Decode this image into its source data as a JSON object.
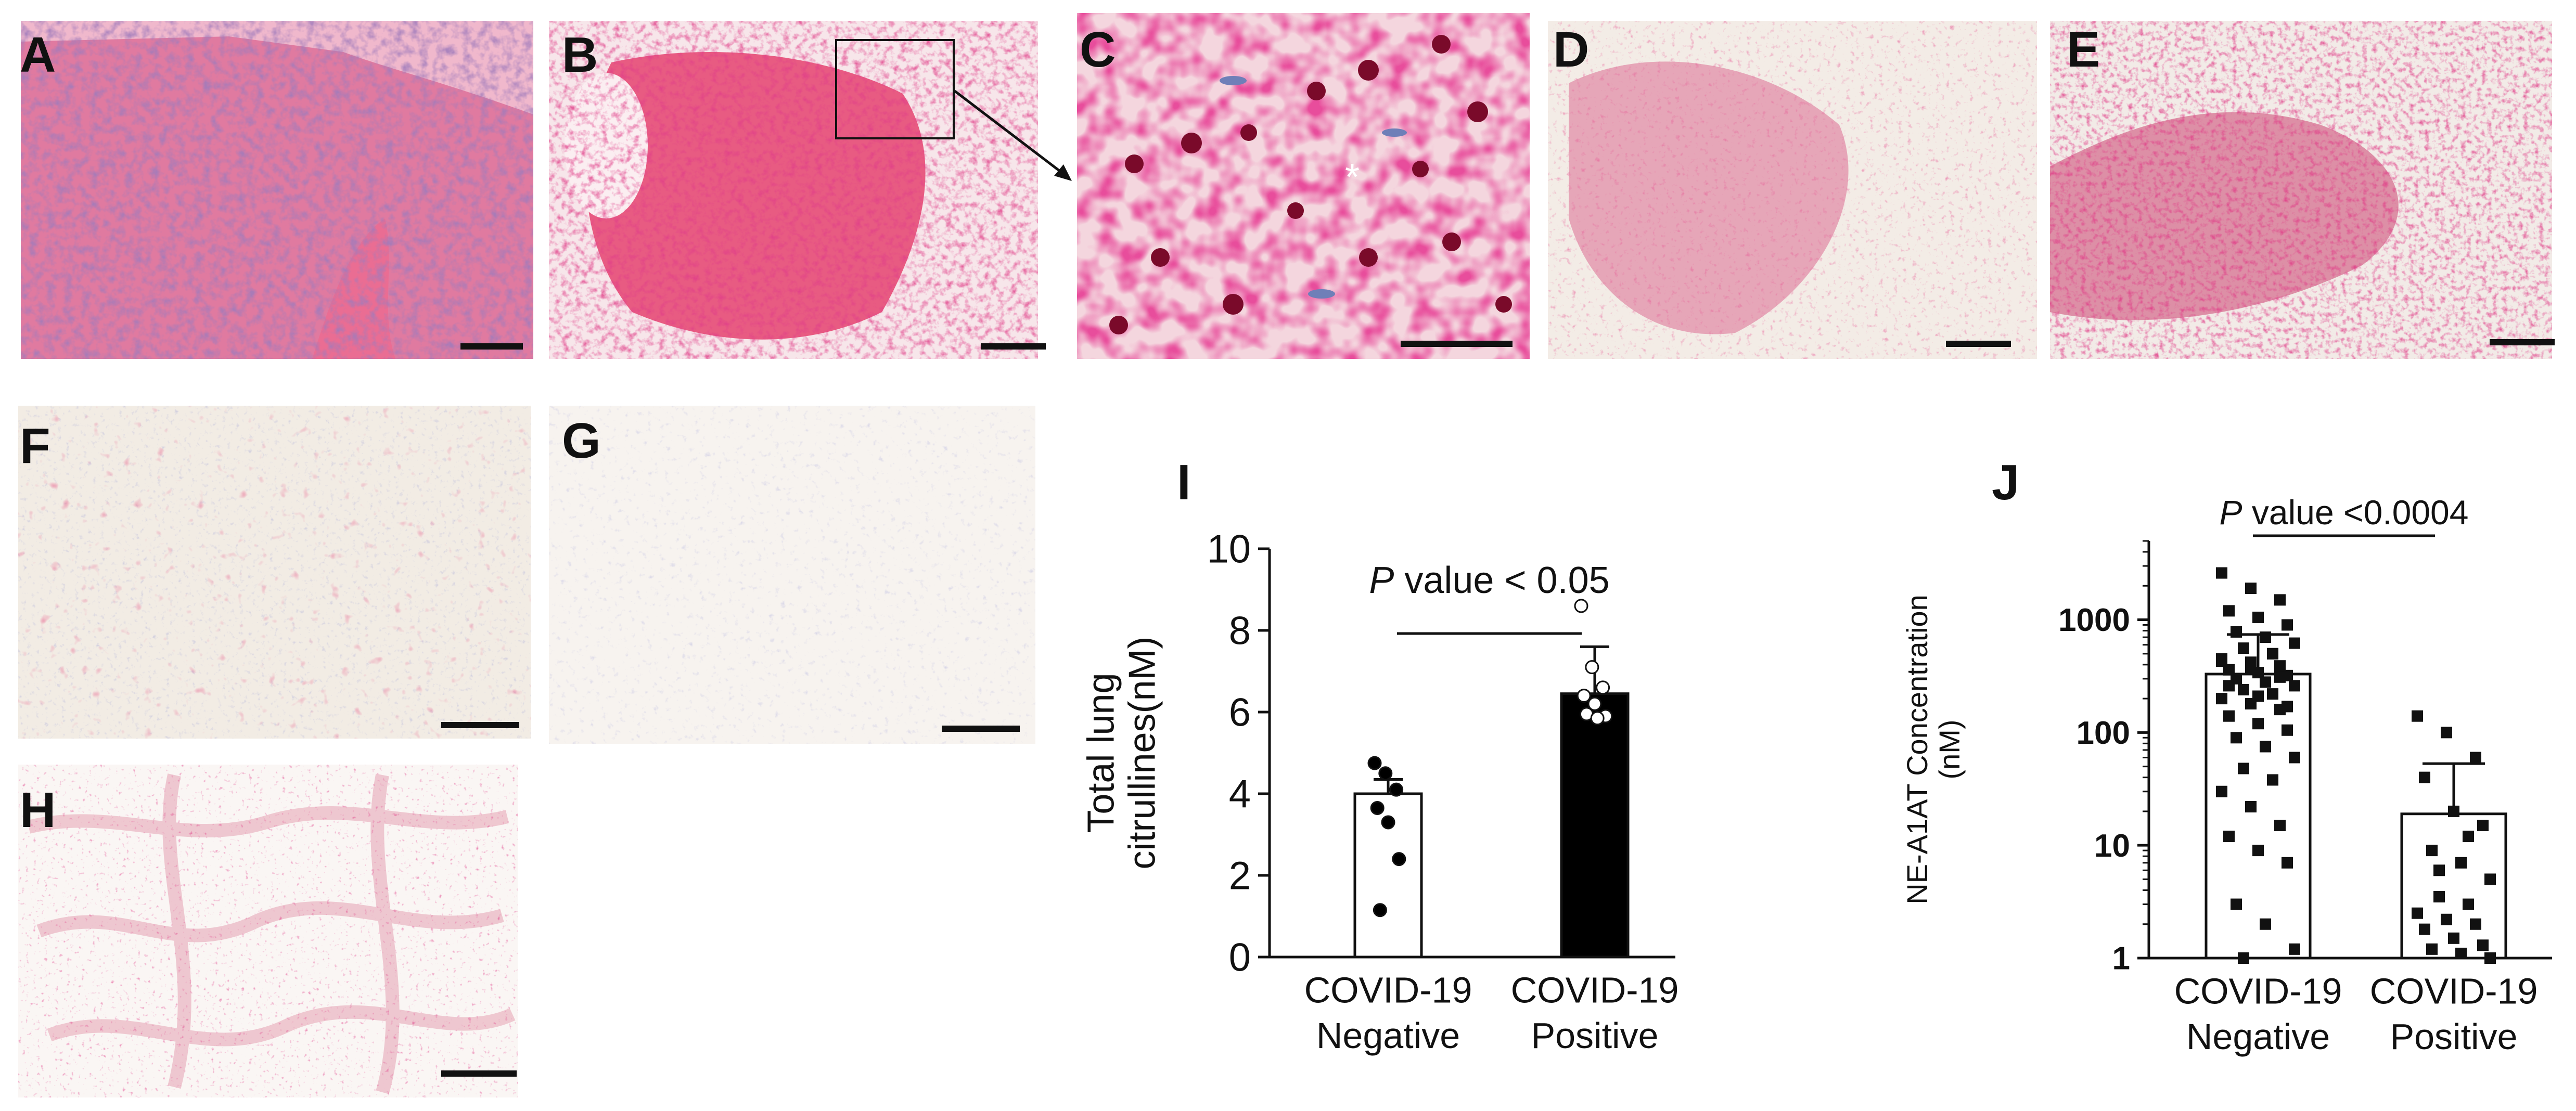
{
  "panel_labels": {
    "a": "A",
    "b": "B",
    "c": "C",
    "d": "D",
    "e": "E",
    "f": "F",
    "g": "G",
    "h": "H",
    "i": "I",
    "j": "J"
  },
  "micrographs": {
    "inset_marker": "*",
    "colors": {
      "he_pink": "#d9658f",
      "he_nuclei": "#4a3a7a",
      "stain_red": "#d2184e",
      "counterstain_blue": "#6f7fb8",
      "background": "#f4ecea"
    }
  },
  "chart_data": [
    {
      "panel": "I",
      "type": "bar",
      "categories": [
        "COVID-19\nNegative",
        "COVID-19\nPositive"
      ],
      "category_lines": [
        [
          "COVID-19",
          "Negative"
        ],
        [
          "COVID-19",
          "Positive"
        ]
      ],
      "values": [
        4.0,
        6.45
      ],
      "error_upper": [
        4.35,
        7.6
      ],
      "bar_fill": [
        "#ffffff",
        "#000000"
      ],
      "points": [
        [
          4.75,
          4.5,
          4.1,
          3.65,
          3.3,
          2.4,
          1.15
        ],
        [
          8.6,
          7.1,
          6.6,
          6.4,
          6.2,
          5.9,
          5.95,
          5.85
        ]
      ],
      "point_fill": [
        "#000000",
        "#ffffff"
      ],
      "ylabel": "Total lung citrullines(nM)",
      "ylabel_lines": [
        "Total lung",
        "citrullines(nM)"
      ],
      "ylim": [
        0,
        10
      ],
      "yticks": [
        "0",
        "2",
        "4",
        "6",
        "8",
        "10"
      ],
      "annotation": {
        "italic": "P",
        "rest": " value < 0.05"
      },
      "grid": false
    },
    {
      "panel": "J",
      "type": "bar",
      "scale": "log",
      "categories": [
        "COVID-19\nNegative",
        "COVID-19\nPositive"
      ],
      "category_lines": [
        [
          "COVID-19",
          "Negative"
        ],
        [
          "COVID-19",
          "Positive"
        ]
      ],
      "values": [
        330,
        19
      ],
      "error_upper": [
        740,
        53
      ],
      "bar_fill": [
        "#ffffff",
        "#ffffff"
      ],
      "points": [
        [
          2600,
          1900,
          1500,
          1200,
          1050,
          900,
          780,
          700,
          620,
          560,
          500,
          450,
          420,
          390,
          360,
          340,
          320,
          300,
          280,
          260,
          240,
          220,
          200,
          180,
          160,
          140,
          120,
          105,
          90,
          75,
          60,
          48,
          38,
          30,
          22,
          15,
          12,
          9,
          7,
          3.0,
          2.0,
          1.2,
          1.0,
          500,
          430,
          370,
          310,
          260,
          210,
          170
        ],
        [
          140,
          100,
          60,
          40,
          20,
          15,
          9,
          7,
          5,
          3.5,
          3.0,
          2.5,
          2.2,
          2.0,
          1.8,
          1.5,
          1.3,
          1.2,
          1.1,
          1.0,
          6,
          12
        ]
      ],
      "ylabel": "NE-A1AT Concentration (nM)",
      "ylabel_lines": [
        "NE-A1AT Concentration",
        "(nM)"
      ],
      "ylim": [
        1,
        5000
      ],
      "yticks": [
        "1",
        "10",
        "100",
        "1000"
      ],
      "annotation": {
        "italic": "P",
        "rest": " value <0.0004"
      },
      "grid": false
    }
  ]
}
